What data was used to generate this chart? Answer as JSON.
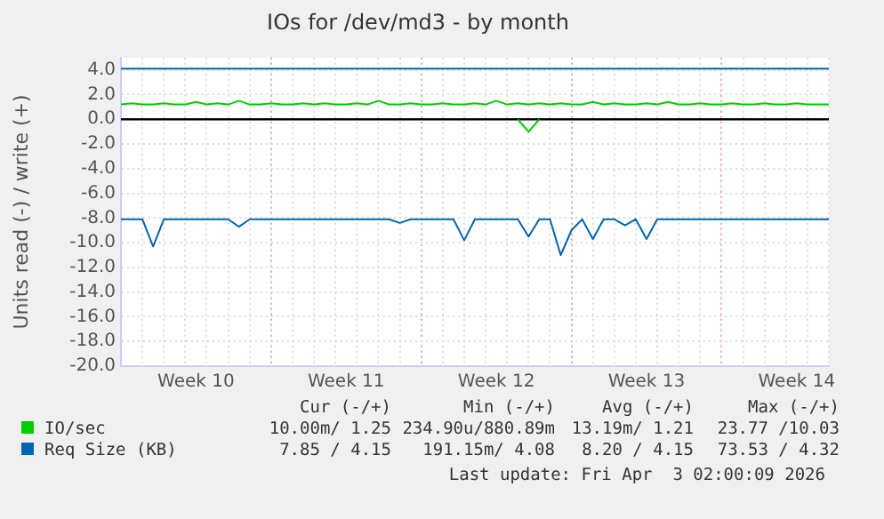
{
  "chart_data": {
    "type": "line",
    "title": "IOs for /dev/md3 - by month",
    "ylabel": "Units read (-) / write (+)",
    "categories": [
      null,
      null,
      null,
      null,
      null,
      null,
      null,
      "Week 10",
      null,
      null,
      null,
      null,
      null,
      null,
      null,
      null,
      null,
      null,
      null,
      null,
      null,
      "Week 11",
      null,
      null,
      null,
      null,
      null,
      null,
      null,
      null,
      null,
      null,
      null,
      null,
      null,
      "Week 12",
      null,
      null,
      null,
      null,
      null,
      null,
      null,
      null,
      null,
      null,
      null,
      null,
      null,
      "Week 13",
      null,
      null,
      null,
      null,
      null,
      null,
      null,
      null,
      null,
      null,
      null,
      null,
      null,
      "Week 14",
      null,
      null,
      null
    ],
    "ylim": [
      -20,
      5
    ],
    "yticks": [
      {
        "value": -20,
        "label": "-20.0"
      },
      {
        "value": -18,
        "label": "-18.0"
      },
      {
        "value": -16,
        "label": "-16.0"
      },
      {
        "value": -14,
        "label": "-14.0"
      },
      {
        "value": -12,
        "label": "-12.0"
      },
      {
        "value": -10,
        "label": "-10.0"
      },
      {
        "value": -8,
        "label": "-8.0"
      },
      {
        "value": -6,
        "label": "-6.0"
      },
      {
        "value": -4,
        "label": "-4.0"
      },
      {
        "value": -2,
        "label": "-2.0"
      },
      {
        "value": 0,
        "label": "0.0"
      },
      {
        "value": 2,
        "label": "2.0"
      },
      {
        "value": 4,
        "label": "4.0"
      }
    ],
    "grid": true,
    "legend": "bottom",
    "line_style": "solid",
    "ref_lines": [
      {
        "axis": "y",
        "value": 0,
        "color": "#000000"
      }
    ],
    "series": [
      {
        "name": "IO/sec",
        "color": "#00cc00",
        "values": [
          1.2,
          1.3,
          1.2,
          1.2,
          1.3,
          1.2,
          1.2,
          1.4,
          1.2,
          1.3,
          1.2,
          1.5,
          1.2,
          1.2,
          1.3,
          1.2,
          1.2,
          1.3,
          1.2,
          1.3,
          1.2,
          1.2,
          1.3,
          1.2,
          1.5,
          1.2,
          1.2,
          1.3,
          1.2,
          1.2,
          1.3,
          1.2,
          1.2,
          1.3,
          1.2,
          1.5,
          1.2,
          1.3,
          1.2,
          1.3,
          1.2,
          1.3,
          1.2,
          1.2,
          1.4,
          1.2,
          1.3,
          1.2,
          1.2,
          1.3,
          1.2,
          1.4,
          1.2,
          1.2,
          1.3,
          1.2,
          1.2,
          1.3,
          1.2,
          1.2,
          1.3,
          1.2,
          1.2,
          1.3,
          1.2,
          1.2,
          1.2
        ]
      },
      {
        "color": "#00cc00",
        "values": [
          null,
          null,
          null,
          null,
          null,
          null,
          null,
          null,
          null,
          null,
          null,
          null,
          null,
          null,
          null,
          null,
          null,
          null,
          null,
          null,
          null,
          null,
          null,
          null,
          null,
          null,
          null,
          null,
          null,
          null,
          null,
          null,
          null,
          null,
          null,
          null,
          null,
          0,
          -1.0,
          0,
          null,
          null,
          null,
          null,
          null,
          null,
          null,
          null,
          null,
          null,
          null,
          null,
          null,
          null,
          null,
          null,
          null,
          null,
          null,
          null,
          null,
          null,
          null,
          null,
          null,
          null,
          null
        ]
      },
      {
        "name": "Req Size (KB)",
        "color": "#0066b3",
        "values": [
          4.1,
          4.1,
          4.1,
          4.1,
          4.1,
          4.1,
          4.1,
          4.1,
          4.1,
          4.1,
          4.1,
          4.1,
          4.1,
          4.1,
          4.1,
          4.1,
          4.1,
          4.1,
          4.1,
          4.1,
          4.1,
          4.1,
          4.1,
          4.1,
          4.1,
          4.1,
          4.1,
          4.1,
          4.1,
          4.1,
          4.1,
          4.1,
          4.1,
          4.1,
          4.1,
          4.1,
          4.1,
          4.1,
          4.1,
          4.1,
          4.1,
          4.1,
          4.1,
          4.1,
          4.1,
          4.1,
          4.1,
          4.1,
          4.1,
          4.1,
          4.1,
          4.1,
          4.1,
          4.1,
          4.1,
          4.1,
          4.1,
          4.1,
          4.1,
          4.1,
          4.1,
          4.1,
          4.1,
          4.1,
          4.1,
          4.1,
          4.1
        ]
      },
      {
        "color": "#0066b3",
        "values": [
          -8.1,
          -8.1,
          -8.1,
          -10.3,
          -8.1,
          -8.1,
          -8.1,
          -8.1,
          -8.1,
          -8.1,
          -8.1,
          -8.7,
          -8.1,
          -8.1,
          -8.1,
          -8.1,
          -8.1,
          -8.1,
          -8.1,
          -8.1,
          -8.1,
          -8.1,
          -8.1,
          -8.1,
          -8.1,
          -8.1,
          -8.4,
          -8.1,
          -8.1,
          -8.1,
          -8.1,
          -8.1,
          -9.8,
          -8.1,
          -8.1,
          -8.1,
          -8.1,
          -8.1,
          -9.5,
          -8.1,
          -8.1,
          -11.0,
          -9.0,
          -8.1,
          -9.7,
          -8.1,
          -8.1,
          -8.6,
          -8.1,
          -9.7,
          -8.1,
          -8.1,
          -8.1,
          -8.1,
          -8.1,
          -8.1,
          -8.1,
          -8.1,
          -8.1,
          -8.1,
          -8.1,
          -8.1,
          -8.1,
          -8.1,
          -8.1,
          -8.1,
          -8.1
        ]
      }
    ],
    "annotations": [
      "Cur (-/+)",
      "Min (-/+)",
      "Avg (-/+)",
      "Max (-/+)",
      "10.00m/ 1.25",
      "234.90u/880.89m",
      "13.19m/ 1.21",
      "23.77 /10.03",
      "7.85 / 4.15",
      "191.15m/ 4.08",
      "8.20 / 4.15",
      "73.53 / 4.32",
      "Last update: Fri Apr  3 02:00:09 2026"
    ]
  }
}
